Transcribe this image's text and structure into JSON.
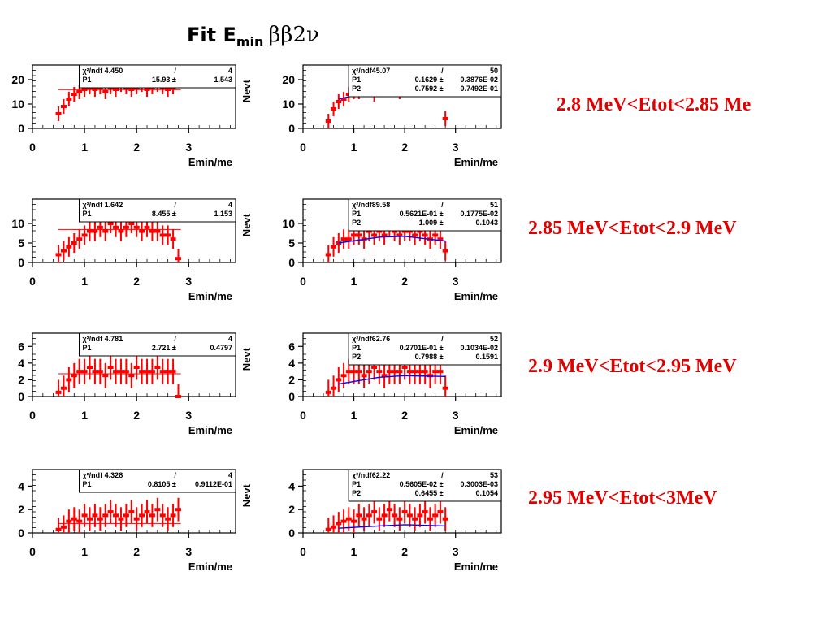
{
  "title": {
    "prefix": "Fit E",
    "subscript": "min",
    "greek": "ββ2ν"
  },
  "colors": {
    "data": "#ff0000",
    "fit": "#0000ff",
    "axis": "#000000",
    "range_text": "#e00000"
  },
  "chart_data": {
    "type": "scatter",
    "xlabel": "Emin/me",
    "ylabel": "Nevt",
    "xlim": [
      0,
      3.9
    ],
    "xticks": [
      "0",
      "1",
      "2",
      "3"
    ],
    "rows": [
      {
        "range_label": "2.8 MeV<Etot<2.85 Me",
        "ylim": [
          0,
          24
        ],
        "yticks": [
          "0",
          "10",
          "20"
        ],
        "left": {
          "stats": [
            [
              "χ²/ndf 4.450",
              "/",
              "4"
            ],
            [
              "P1",
              "15.93 ±",
              "1.543"
            ]
          ],
          "fit": null,
          "x": [
            0.5,
            0.6,
            0.7,
            0.8,
            0.9,
            1.0,
            1.1,
            1.2,
            1.3,
            1.4,
            1.5,
            1.6,
            1.7,
            1.8,
            1.9,
            2.0,
            2.1,
            2.2,
            2.3,
            2.4,
            2.5,
            2.6,
            2.7
          ],
          "y": [
            6,
            9,
            12,
            14,
            15,
            16,
            17,
            16,
            17,
            15,
            17,
            16,
            18,
            17,
            16,
            17,
            18,
            16,
            17,
            18,
            17,
            16,
            17
          ],
          "err": 3
        },
        "right": {
          "stats": [
            [
              "χ²/ndf45.07",
              "/",
              "50"
            ],
            [
              "P1",
              "0.1629 ±",
              "0.3876E-02"
            ],
            [
              "P2",
              "0.7592 ±",
              "0.7492E-01"
            ]
          ],
          "fit": [
            [
              0.7,
              12
            ],
            [
              1.5,
              16
            ],
            [
              2.0,
              16.5
            ],
            [
              2.8,
              15
            ]
          ],
          "x": [
            0.5,
            0.6,
            0.7,
            0.8,
            0.9,
            1.0,
            1.1,
            1.2,
            1.3,
            1.4,
            1.5,
            1.6,
            1.7,
            1.8,
            1.9,
            2.0,
            2.1,
            2.2,
            2.3,
            2.4,
            2.5,
            2.6,
            2.7,
            2.8
          ],
          "y": [
            3,
            8,
            11,
            12,
            14,
            15,
            15,
            16,
            17,
            14,
            16,
            17,
            16,
            17,
            15,
            16,
            17,
            16,
            18,
            17,
            17,
            16,
            17,
            4
          ],
          "err": 3
        }
      },
      {
        "range_label": "2.85 MeV<Etot<2.9 MeV",
        "ylim": [
          0,
          15
        ],
        "yticks": [
          "0",
          "5",
          "10"
        ],
        "left": {
          "stats": [
            [
              "χ²/ndf 1.642",
              "/",
              "4"
            ],
            [
              "P1",
              "8.455 ±",
              "1.153"
            ]
          ],
          "fit": null,
          "x": [
            0.5,
            0.6,
            0.7,
            0.8,
            0.9,
            1.0,
            1.1,
            1.2,
            1.3,
            1.4,
            1.5,
            1.6,
            1.7,
            1.8,
            1.9,
            2.0,
            2.1,
            2.2,
            2.3,
            2.4,
            2.5,
            2.6,
            2.7,
            2.8
          ],
          "y": [
            2,
            3,
            4,
            5,
            6,
            7,
            8,
            8,
            9,
            8,
            10,
            9,
            8,
            9,
            10,
            9,
            8,
            9,
            8,
            8,
            7,
            7,
            6,
            1
          ],
          "err": 2.5
        },
        "right": {
          "stats": [
            [
              "χ²/ndf89.58",
              "/",
              "51"
            ],
            [
              "P1",
              "0.5621E-01 ±",
              "0.1775E-02"
            ],
            [
              "P2",
              "1.009 ±",
              "0.1043"
            ]
          ],
          "fit": [
            [
              0.7,
              5
            ],
            [
              1.5,
              6.5
            ],
            [
              2.0,
              6.7
            ],
            [
              2.8,
              5.5
            ]
          ],
          "x": [
            0.5,
            0.6,
            0.7,
            0.8,
            0.9,
            1.0,
            1.1,
            1.2,
            1.3,
            1.4,
            1.5,
            1.6,
            1.7,
            1.8,
            1.9,
            2.0,
            2.1,
            2.2,
            2.3,
            2.4,
            2.5,
            2.6,
            2.7,
            2.8
          ],
          "y": [
            2,
            4,
            5,
            6,
            6,
            7,
            7,
            6,
            8,
            7,
            8,
            7,
            9,
            8,
            7,
            8,
            8,
            7,
            8,
            7,
            6,
            7,
            6,
            3
          ],
          "err": 2.5
        }
      },
      {
        "range_label": "2.9 MeV<Etot<2.95 MeV",
        "ylim": [
          0,
          7
        ],
        "yticks": [
          "0",
          "2",
          "4",
          "6"
        ],
        "left": {
          "stats": [
            [
              "χ²/ndf 4.781",
              "/",
              "4"
            ],
            [
              "P1",
              "2.721 ±",
              "0.4797"
            ]
          ],
          "fit": null,
          "x": [
            0.5,
            0.6,
            0.7,
            0.8,
            0.9,
            1.0,
            1.1,
            1.2,
            1.3,
            1.4,
            1.5,
            1.6,
            1.7,
            1.8,
            1.9,
            2.0,
            2.1,
            2.2,
            2.3,
            2.4,
            2.5,
            2.6,
            2.7,
            2.8
          ],
          "y": [
            0.5,
            1,
            2,
            2.5,
            3,
            3,
            3.5,
            3,
            3,
            2.5,
            3.5,
            3,
            3,
            3,
            2.5,
            3.5,
            3,
            3,
            3,
            3.5,
            3,
            3,
            3,
            0
          ],
          "err": 1.5
        },
        "right": {
          "stats": [
            [
              "χ²/ndf62.76",
              "/",
              "52"
            ],
            [
              "P1",
              "0.2701E-01 ±",
              "0.1034E-02"
            ],
            [
              "P2",
              "0.7988 ±",
              "0.1591"
            ]
          ],
          "fit": [
            [
              0.7,
              1.5
            ],
            [
              1.5,
              2.3
            ],
            [
              2.0,
              2.5
            ],
            [
              2.8,
              2.4
            ]
          ],
          "x": [
            0.5,
            0.6,
            0.7,
            0.8,
            0.9,
            1.0,
            1.1,
            1.2,
            1.3,
            1.4,
            1.5,
            1.6,
            1.7,
            1.8,
            1.9,
            2.0,
            2.1,
            2.2,
            2.3,
            2.4,
            2.5,
            2.6,
            2.7,
            2.8
          ],
          "y": [
            0.5,
            1,
            2,
            2.5,
            3,
            3,
            3,
            2.5,
            3,
            3.5,
            3,
            2.5,
            3,
            3,
            3,
            3.5,
            3,
            3,
            3,
            3,
            2.5,
            3,
            3,
            1
          ],
          "err": 1.5
        }
      },
      {
        "range_label": "2.95 MeV<Etot<3MeV",
        "ylim": [
          0,
          5
        ],
        "yticks": [
          "0",
          "2",
          "4"
        ],
        "left": {
          "stats": [
            [
              "χ²/ndf 4.328",
              "/",
              "4"
            ],
            [
              "P1",
              "0.8105 ±",
              "0.9112E-01"
            ]
          ],
          "fit": null,
          "x": [
            0.5,
            0.6,
            0.7,
            0.8,
            0.9,
            1.0,
            1.1,
            1.2,
            1.3,
            1.4,
            1.5,
            1.6,
            1.7,
            1.8,
            1.9,
            2.0,
            2.1,
            2.2,
            2.3,
            2.4,
            2.5,
            2.6,
            2.7,
            2.8
          ],
          "y": [
            0.3,
            0.5,
            1,
            1.2,
            1,
            1.5,
            1.2,
            1.5,
            1.2,
            1.5,
            1.8,
            1.5,
            1.2,
            1.5,
            1.8,
            1.2,
            1.5,
            1.8,
            1.5,
            2,
            1.5,
            1.2,
            1.5,
            2
          ],
          "err": 1
        },
        "right": {
          "stats": [
            [
              "χ²/ndf62.22",
              "/",
              "53"
            ],
            [
              "P1",
              "0.5605E-02 ±",
              "0.3003E-03"
            ],
            [
              "P2",
              "0.6455 ±",
              "0.1054"
            ]
          ],
          "fit": [
            [
              0.7,
              0.4
            ],
            [
              1.5,
              0.6
            ],
            [
              2.0,
              0.7
            ],
            [
              2.8,
              0.6
            ]
          ],
          "x": [
            0.5,
            0.6,
            0.7,
            0.8,
            0.9,
            1.0,
            1.1,
            1.2,
            1.3,
            1.4,
            1.5,
            1.6,
            1.7,
            1.8,
            1.9,
            2.0,
            2.1,
            2.2,
            2.3,
            2.4,
            2.5,
            2.6,
            2.7,
            2.8
          ],
          "y": [
            0.3,
            0.5,
            0.8,
            1,
            1.2,
            1,
            1.5,
            1.2,
            1.5,
            1.8,
            1.2,
            1.5,
            2,
            1.5,
            1.2,
            1.8,
            1.5,
            1.2,
            1.5,
            1.8,
            1.2,
            1.5,
            1.8,
            1.2
          ],
          "err": 1
        }
      }
    ]
  }
}
